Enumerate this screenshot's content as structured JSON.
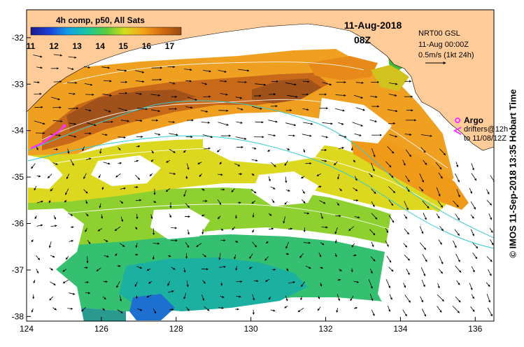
{
  "header": {
    "composite_label": "4h comp, p50, All Sats",
    "date": "11-Aug-2018",
    "time": "08Z"
  },
  "colorbar": {
    "ticks": [
      "11",
      "12",
      "13",
      "14",
      "15",
      "16",
      "17"
    ],
    "min": 11,
    "max": 17.5,
    "colors": [
      "#1a1a8c",
      "#1e40d8",
      "#10a0e6",
      "#18c8a0",
      "#58cc3c",
      "#d6dc1c",
      "#f4a21a",
      "#d46a10",
      "#9a4a12"
    ]
  },
  "current_info": {
    "line1": "NRT00 GSL",
    "line2": "11-Aug 00:00Z",
    "line3": "0.5m/s (1kt 24h)"
  },
  "legend": {
    "argo": "Argo",
    "drifters": "drifters@12h",
    "drifters_to": "to 11/08/12Z",
    "argo_color": "#ff33ff",
    "drifter_color": "#ff33ff"
  },
  "axes": {
    "x_ticks": [
      "124",
      "126",
      "128",
      "130",
      "132",
      "134",
      "136"
    ],
    "y_ticks": [
      "-32",
      "-33",
      "-34",
      "-35",
      "-36",
      "-37",
      "-38"
    ],
    "lon_range": [
      124,
      136.5
    ],
    "lat_range": [
      -38.1,
      -31.4
    ]
  },
  "credit": "© IMOS 11-Sep-2018 13:35 Hobart Time",
  "colors": {
    "land": "#ffcc99",
    "ocean_nodata": "#ffffff",
    "contour": "#ffffff",
    "bathy": "#33cccc"
  }
}
